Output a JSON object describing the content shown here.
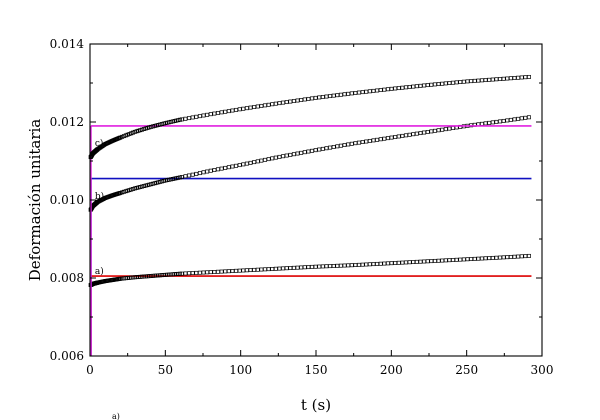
{
  "chart_data": {
    "type": "line",
    "xlabel": "t (s)",
    "ylabel": "Deformación unitaria",
    "xlim": [
      0,
      300
    ],
    "ylim": [
      0.006,
      0.014
    ],
    "xticks": [
      0,
      50,
      100,
      150,
      200,
      250,
      300
    ],
    "xtick_labels": [
      "0",
      "50",
      "100",
      "150",
      "200",
      "250",
      "300"
    ],
    "yticks": [
      0.006,
      0.008,
      0.01,
      0.012,
      0.014
    ],
    "ytick_labels": [
      "0.006",
      "0.008",
      "0.010",
      "0.012",
      "0.014"
    ],
    "grid": false,
    "series": [
      {
        "label": "a)",
        "color": "#000000",
        "marker": "open-square",
        "x": [
          0.5,
          2,
          5,
          10,
          15,
          20,
          30,
          40,
          50,
          60,
          80,
          100,
          125,
          150,
          175,
          200,
          225,
          250,
          275,
          293
        ],
        "y": [
          0.00782,
          0.00785,
          0.00788,
          0.00792,
          0.00795,
          0.00798,
          0.00802,
          0.00805,
          0.00808,
          0.00811,
          0.00815,
          0.00819,
          0.00824,
          0.00829,
          0.00833,
          0.00838,
          0.00843,
          0.00848,
          0.00853,
          0.00857
        ],
        "plateau": 0.00805,
        "plateau_color": "#dd0000"
      },
      {
        "label": "b)",
        "color": "#000000",
        "marker": "open-square",
        "x": [
          0.5,
          2,
          5,
          10,
          15,
          20,
          30,
          40,
          50,
          60,
          80,
          100,
          125,
          150,
          175,
          200,
          225,
          250,
          275,
          293
        ],
        "y": [
          0.00975,
          0.00985,
          0.00995,
          0.01005,
          0.01012,
          0.01018,
          0.0103,
          0.0104,
          0.0105,
          0.01058,
          0.01075,
          0.0109,
          0.0111,
          0.01128,
          0.01145,
          0.0116,
          0.01175,
          0.0119,
          0.01203,
          0.01213
        ],
        "plateau": 0.01055,
        "plateau_color": "#1010c0"
      },
      {
        "label": "c)",
        "color": "#000000",
        "marker": "open-square",
        "x": [
          0.5,
          2,
          5,
          10,
          15,
          20,
          30,
          40,
          50,
          60,
          80,
          100,
          125,
          150,
          175,
          200,
          225,
          250,
          275,
          293
        ],
        "y": [
          0.0111,
          0.0112,
          0.0113,
          0.01143,
          0.01152,
          0.0116,
          0.01175,
          0.01187,
          0.01197,
          0.01206,
          0.0122,
          0.01233,
          0.01248,
          0.01262,
          0.01274,
          0.01285,
          0.01295,
          0.01304,
          0.01311,
          0.01316
        ],
        "plateau": 0.0119,
        "plateau_color": "#e020e0"
      }
    ]
  },
  "footer_note": "a)"
}
